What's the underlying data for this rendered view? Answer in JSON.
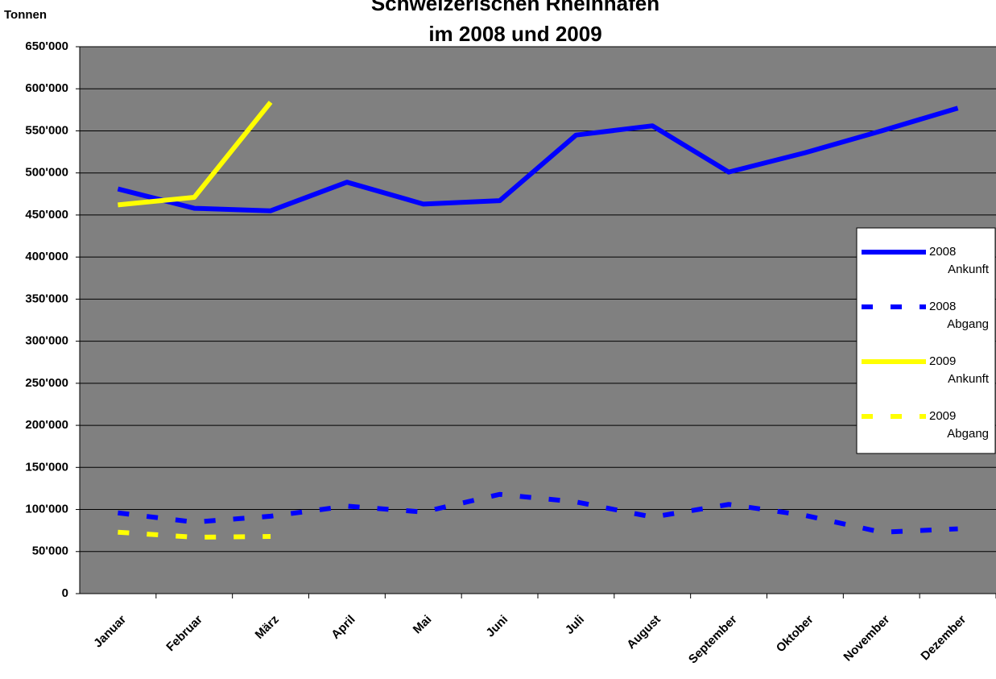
{
  "chart_data": {
    "type": "line",
    "title_lines": [
      "Schweizerischen Rheinhäfen",
      "im 2008 und 2009"
    ],
    "y_label": "Tonnen",
    "categories": [
      "Januar",
      "Februar",
      "März",
      "April",
      "Mai",
      "Juni",
      "Juli",
      "August",
      "September",
      "Oktober",
      "November",
      "Dezember"
    ],
    "series": [
      {
        "name": "2008 Ankunft",
        "color": "#0000ff",
        "dashed": false,
        "values": [
          481000,
          458000,
          455000,
          489000,
          463000,
          467000,
          545000,
          556000,
          501000,
          524000,
          550000,
          577000
        ]
      },
      {
        "name": "2008 Abgang",
        "color": "#0000ff",
        "dashed": true,
        "values": [
          96000,
          85000,
          92000,
          104000,
          97000,
          118000,
          109000,
          91000,
          106000,
          93000,
          73000,
          77000
        ]
      },
      {
        "name": "2009 Ankunft",
        "color": "#ffff00",
        "dashed": false,
        "values": [
          462000,
          471000,
          584000,
          null,
          null,
          null,
          null,
          null,
          null,
          null,
          null,
          null
        ]
      },
      {
        "name": "2009 Abgang",
        "color": "#ffff00",
        "dashed": true,
        "values": [
          73000,
          67000,
          68000,
          null,
          null,
          null,
          null,
          null,
          null,
          null,
          null,
          null
        ]
      }
    ],
    "ylim": [
      0,
      650000
    ],
    "yticks": [
      0,
      {
        "value": 50000,
        "label": "50'000"
      },
      {
        "value": 100000,
        "label": "100'000"
      },
      {
        "value": 150000,
        "label": "150'000"
      },
      {
        "value": 200000,
        "label": "200'000"
      },
      {
        "value": 250000,
        "label": "250'000"
      },
      {
        "value": 300000,
        "label": "300'000"
      },
      {
        "value": 350000,
        "label": "350'000"
      },
      {
        "value": 400000,
        "label": "400'000"
      },
      {
        "value": 450000,
        "label": "450'000"
      },
      {
        "value": 500000,
        "label": "500'000"
      },
      {
        "value": 550000,
        "label": "550'000"
      },
      {
        "value": 600000,
        "label": "600'000"
      },
      {
        "value": 650000,
        "label": "650'000"
      }
    ],
    "grid": true,
    "legend": "right"
  }
}
